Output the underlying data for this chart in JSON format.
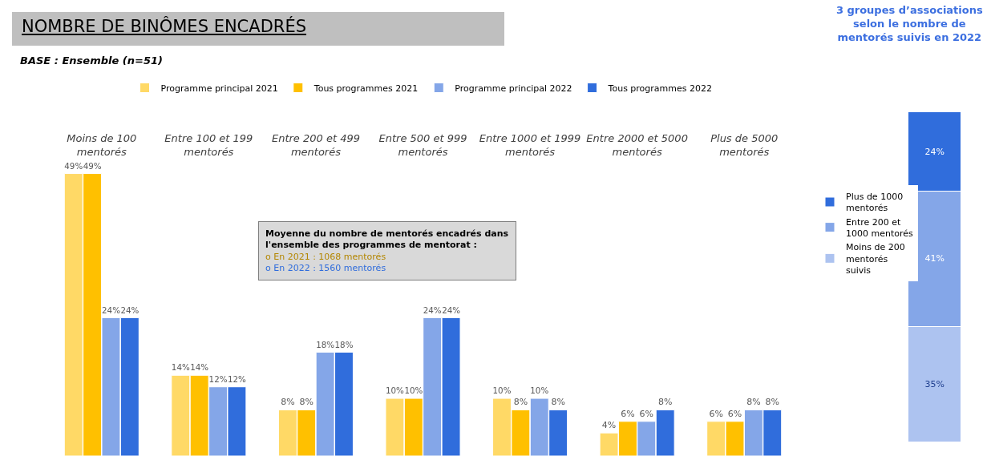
{
  "chart_data": [
    {
      "type": "bar",
      "title": "NOMBRE DE BINÔMES ENCADRÉS",
      "subtitle": "BASE : Ensemble  (n=51)",
      "categories": [
        "Moins de 100 mentorés",
        "Entre 100 et 199 mentorés",
        "Entre 200 et 499 mentorés",
        "Entre 500 et 999 mentorés",
        "Entre 1000 et 1999 mentorés",
        "Entre 2000 et 5000 mentorés",
        "Plus de 5000 mentorés"
      ],
      "series": [
        {
          "name": "Programme principal 2021",
          "color": "#ffd966",
          "values": [
            49,
            14,
            8,
            10,
            10,
            4,
            6
          ],
          "value_labels": [
            "49%",
            "14%",
            "8%",
            "10%",
            "10%",
            "4%",
            "6%"
          ]
        },
        {
          "name": "Tous programmes 2021",
          "color": "#ffc000",
          "values": [
            49,
            14,
            8,
            10,
            8,
            6,
            6
          ],
          "value_labels": [
            "49%",
            "14%",
            "8%",
            "10%",
            "8%",
            "6%",
            "6%"
          ]
        },
        {
          "name": "Programme principal 2022",
          "color": "#84a6e8",
          "values": [
            24,
            12,
            18,
            24,
            10,
            6,
            8
          ],
          "value_labels": [
            "24%",
            "12%",
            "18%",
            "24%",
            "10%",
            "6%",
            "8%"
          ]
        },
        {
          "name": "Tous programmes 2022",
          "color": "#306ddc",
          "values": [
            24,
            12,
            18,
            24,
            8,
            8,
            8
          ],
          "value_labels": [
            "24%",
            "12%",
            "18%",
            "24%",
            "8%",
            "8%",
            "8%"
          ]
        }
      ],
      "annotations": [
        "Moyenne du nombre de mentorés encadrés dans l'ensemble des programmes de mentorat :",
        "o En 2021 : 1068 mentorés",
        "o En 2022 : 1560 mentorés"
      ],
      "legend": "top",
      "tick_labels": "x",
      "grid": false
    },
    {
      "type": "bar",
      "title": "3 groupes d’associations selon le nombre de mentorés suivis en 2022",
      "categories": [
        null
      ],
      "stacked": true,
      "series": [
        {
          "name": "Moins de 200 mentorés suivis",
          "color": "#adc3f0",
          "values": [
            35
          ],
          "value_labels": [
            "35%"
          ]
        },
        {
          "name": "Entre 200 et 1000 mentorés",
          "color": "#84a6e8",
          "values": [
            41
          ],
          "value_labels": [
            "41%"
          ]
        },
        {
          "name": "Plus de 1000 mentorés",
          "color": "#306ddc",
          "values": [
            24
          ],
          "value_labels": [
            "24%"
          ]
        }
      ],
      "legend": "left",
      "tick_labels": false,
      "grid": false
    }
  ]
}
